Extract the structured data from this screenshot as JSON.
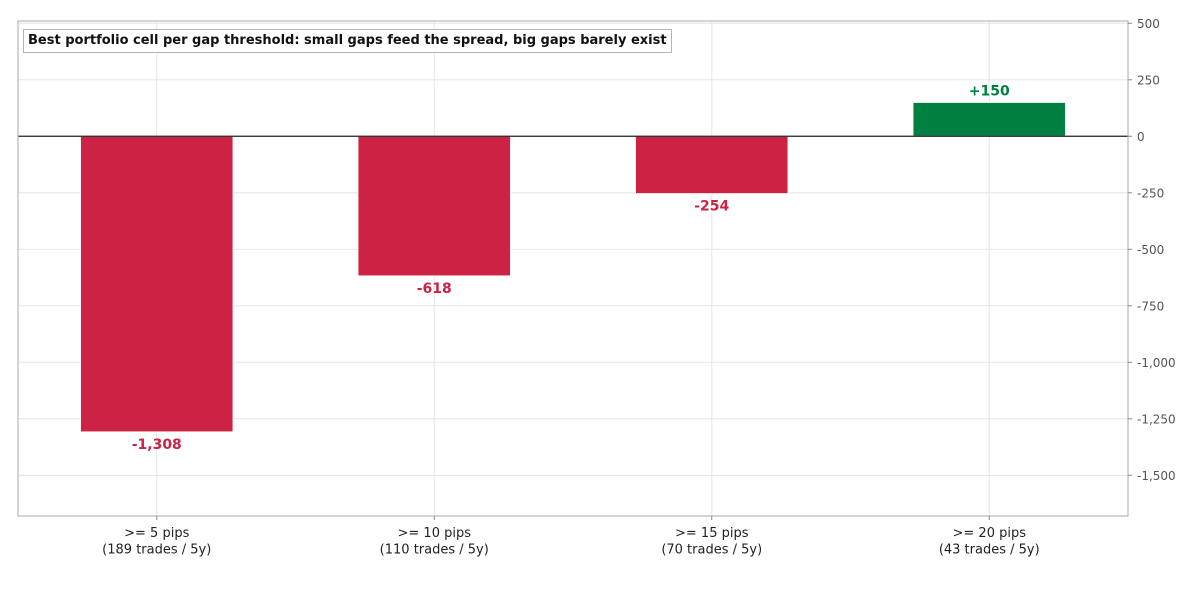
{
  "chart_data": {
    "type": "bar",
    "title": "Best portfolio cell per gap threshold: small gaps feed the spread, big gaps barely exist",
    "xlabel": "",
    "ylabel": "",
    "categories": [
      [
        ">= 5 pips",
        "(189 trades / 5y)"
      ],
      [
        ">= 10 pips",
        "(110 trades / 5y)"
      ],
      [
        ">= 15 pips",
        "(70 trades / 5y)"
      ],
      [
        ">= 20 pips",
        "(43 trades / 5y)"
      ]
    ],
    "values": [
      -1308,
      -618,
      -254,
      150
    ],
    "value_labels": [
      "-1,308",
      "-618",
      "-254",
      "+150"
    ],
    "ylim": [
      -1680,
      510
    ],
    "yticks": [
      500,
      250,
      0,
      -250,
      -500,
      -750,
      -1000,
      -1250,
      -1500
    ],
    "ytick_labels": [
      "500",
      "250",
      "0",
      "-250",
      "-500",
      "-750",
      "-1,000",
      "-1,250",
      "-1,500"
    ],
    "y_axis_side": "right",
    "grid": true,
    "colors": {
      "negative": "#cc2244",
      "positive": "#008040",
      "grid": "#e6e6e6",
      "zero_line": "#222222",
      "frame": "#aaaaaa",
      "tick_text": "#555555"
    }
  }
}
